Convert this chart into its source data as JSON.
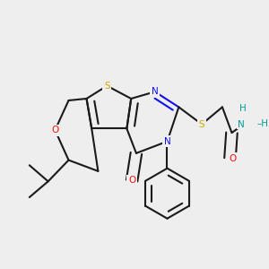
{
  "bg_color": "#eeeeee",
  "colors": {
    "C": "#1a1a1a",
    "N": "#1010ee",
    "O": "#ee1010",
    "S": "#ccaa00",
    "H_label": "#009999"
  },
  "lw": 1.5,
  "lw_thin": 1.2,
  "fs": 7.5,
  "dbo": 0.022
}
